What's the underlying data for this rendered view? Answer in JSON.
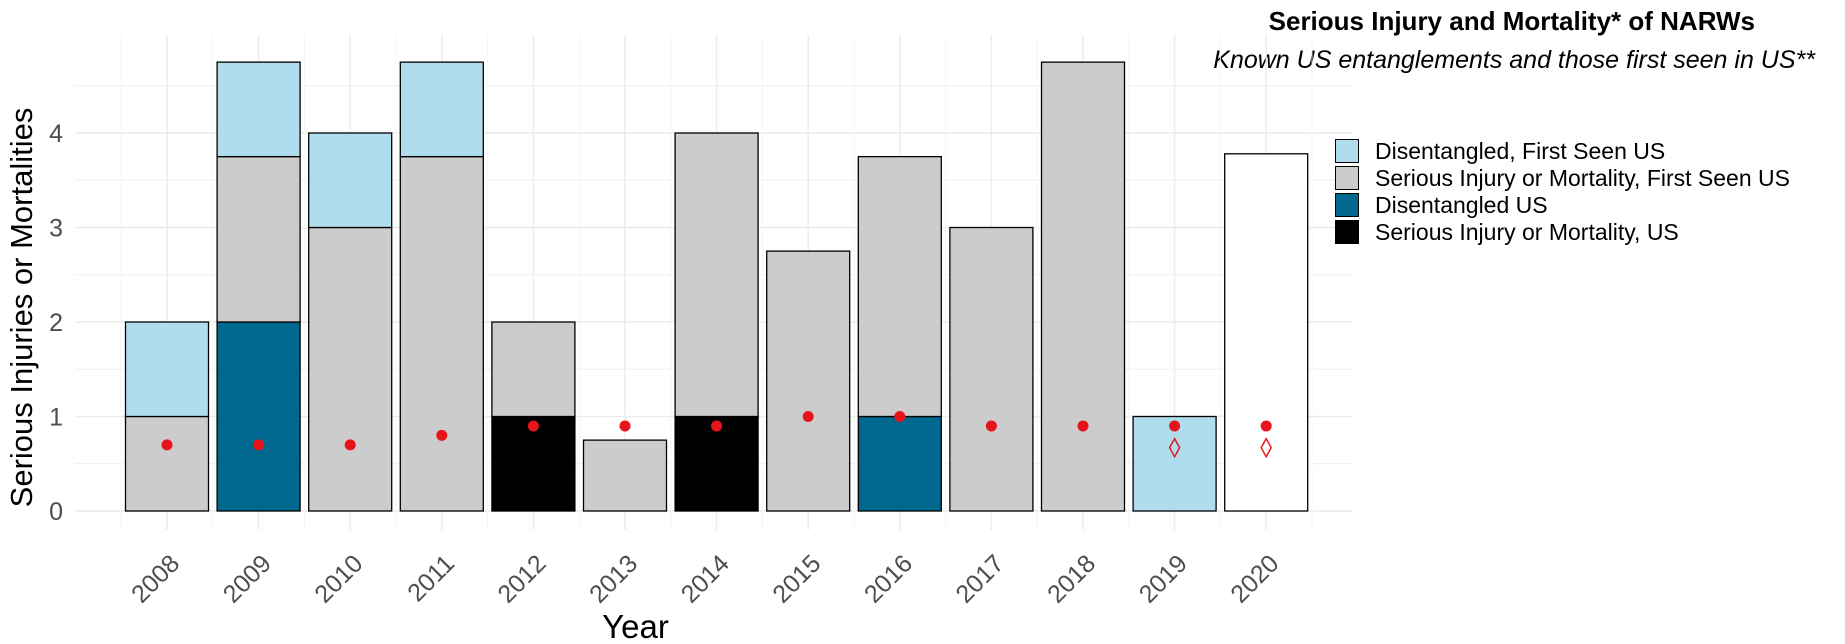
{
  "chart_data": {
    "type": "bar",
    "title": "Serious Injury and Mortality* of NARWs",
    "subtitle": "Known US entanglements and those first seen in US**",
    "xlabel": "Year",
    "ylabel": "Serious Injuries or Mortalities",
    "categories": [
      "2008",
      "2009",
      "2010",
      "2011",
      "2012",
      "2013",
      "2014",
      "2015",
      "2016",
      "2017",
      "2018",
      "2019",
      "2020"
    ],
    "ylim": [
      0,
      5
    ],
    "yticks": [
      0,
      1,
      2,
      3,
      4
    ],
    "grid": true,
    "legend_position": "right",
    "colors": {
      "disentangled_first_seen_us": "#B0DDEE",
      "serious_first_seen_us": "#CCCCCC",
      "disentangled_us": "#00678E",
      "serious_us": "#000000",
      "unstacked": "#FFFFFF",
      "marker": "#E8141B"
    },
    "series": [
      {
        "name": "Serious Injury or Mortality, US",
        "key": "serious_us",
        "values": [
          0,
          0,
          0,
          0,
          1,
          0,
          1,
          0,
          0,
          0,
          0,
          0,
          0
        ]
      },
      {
        "name": "Disentangled US",
        "key": "disentangled_us",
        "values": [
          0,
          2,
          0,
          0,
          0,
          0,
          0,
          0,
          1,
          0,
          0,
          0,
          0
        ]
      },
      {
        "name": "Serious Injury or Mortality, First Seen US",
        "key": "serious_first_seen_us",
        "values": [
          1,
          1.75,
          3,
          3.75,
          1,
          0.75,
          3,
          2.75,
          2.75,
          3,
          4.75,
          0,
          0
        ]
      },
      {
        "name": "Disentangled, First Seen US",
        "key": "disentangled_first_seen_us",
        "values": [
          1,
          1,
          1,
          1,
          0,
          0,
          0,
          0,
          0,
          0,
          0,
          1,
          0
        ]
      }
    ],
    "unstacked_bar": {
      "category": "2020",
      "value": 3.78
    },
    "markers": [
      0.7,
      0.7,
      0.7,
      0.8,
      0.9,
      0.9,
      0.9,
      1.0,
      1.0,
      0.9,
      0.9,
      0.9,
      0.9
    ],
    "diamond_markers": [
      {
        "category": "2019",
        "value": 0.67
      },
      {
        "category": "2020",
        "value": 0.67
      }
    ],
    "legend": [
      {
        "label": "Disentangled, First Seen US",
        "key": "disentangled_first_seen_us"
      },
      {
        "label": "Serious Injury or Mortality, First Seen US",
        "key": "serious_first_seen_us"
      },
      {
        "label": "Disentangled US",
        "key": "disentangled_us"
      },
      {
        "label": "Serious Injury or Mortality, US",
        "key": "serious_us"
      }
    ]
  }
}
